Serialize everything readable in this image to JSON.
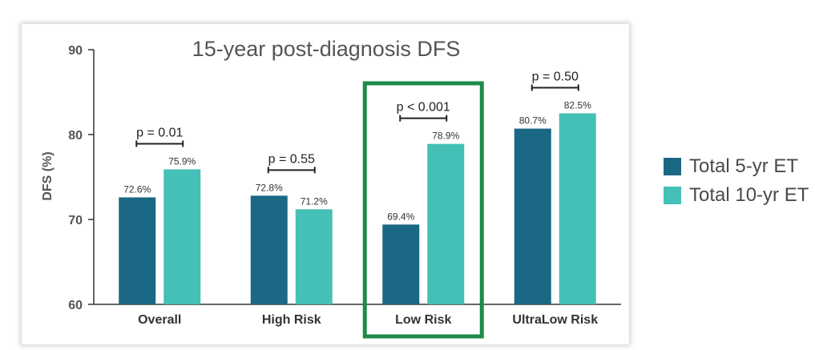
{
  "chart_data": {
    "type": "bar",
    "title": "15-year post-diagnosis DFS",
    "xlabel": "",
    "ylabel": "DFS (%)",
    "ylim": [
      60,
      90
    ],
    "yticks": [
      60,
      70,
      80,
      90
    ],
    "grid": false,
    "legend_position": "right",
    "categories": [
      "Overall",
      "High Risk",
      "Low Risk",
      "UltraLow Risk"
    ],
    "series": [
      {
        "name": "Total 5-yr ET",
        "color": "#1a6884",
        "values": [
          72.6,
          72.8,
          69.4,
          80.7
        ],
        "labels": [
          "72.6%",
          "72.8%",
          "69.4%",
          "80.7%"
        ]
      },
      {
        "name": "Total 10-yr ET",
        "color": "#44c0b6",
        "values": [
          75.9,
          71.2,
          78.9,
          82.5
        ],
        "labels": [
          "75.9%",
          "71.2%",
          "78.9%",
          "82.5%"
        ]
      }
    ],
    "p_values": [
      "p = 0.01",
      "p = 0.55",
      "p < 0.001",
      "p = 0.50"
    ],
    "highlight_category": "Low Risk",
    "highlight_color": "#1e8a4a"
  }
}
